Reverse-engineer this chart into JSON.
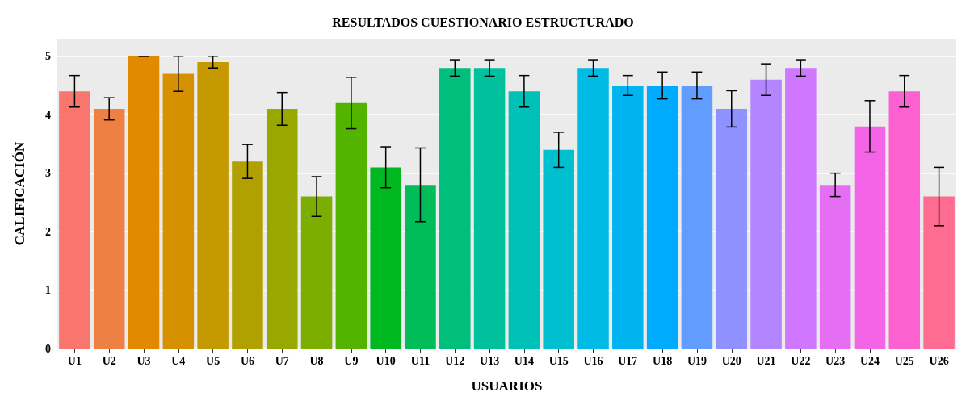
{
  "chart_data": {
    "type": "bar",
    "title": "RESULTADOS CUESTIONARIO ESTRUCTURADO",
    "xlabel": "USUARIOS",
    "ylabel": "CALIFICACIÓN",
    "categories": [
      "U1",
      "U2",
      "U3",
      "U4",
      "U5",
      "U6",
      "U7",
      "U8",
      "U9",
      "U10",
      "U11",
      "U12",
      "U13",
      "U14",
      "U15",
      "U16",
      "U17",
      "U18",
      "U19",
      "U20",
      "U21",
      "U22",
      "U23",
      "U24",
      "U25",
      "U26"
    ],
    "values": [
      4.4,
      4.1,
      5.0,
      4.7,
      4.9,
      3.2,
      4.1,
      2.6,
      4.2,
      3.1,
      2.8,
      4.8,
      4.8,
      4.4,
      3.4,
      4.8,
      4.5,
      4.5,
      4.5,
      4.1,
      4.6,
      4.8,
      2.8,
      3.8,
      4.4,
      2.6
    ],
    "errors": [
      0.27,
      0.19,
      0,
      0.3,
      0.1,
      0.29,
      0.28,
      0.34,
      0.44,
      0.35,
      0.63,
      0.14,
      0.14,
      0.27,
      0.3,
      0.14,
      0.17,
      0.23,
      0.23,
      0.31,
      0.27,
      0.14,
      0.2,
      0.44,
      0.27,
      0.5
    ],
    "colors": [
      "#F8766D",
      "#EE8044",
      "#E38900",
      "#D59100",
      "#C49A00",
      "#B0A100",
      "#99A800",
      "#7CAE00",
      "#53B400",
      "#00B81F",
      "#00BC59",
      "#00BF7D",
      "#00C19C",
      "#00C1B7",
      "#00BFCF",
      "#00BBE3",
      "#00B4F0",
      "#00ABFD",
      "#619CFF",
      "#8F91FF",
      "#B385FF",
      "#CF78FF",
      "#E56EF5",
      "#F365E6",
      "#FD61D1",
      "#FF6C91"
    ],
    "ylim": [
      0,
      5.3
    ],
    "yticks": [
      0,
      1,
      2,
      3,
      4,
      5
    ],
    "grid": "y"
  }
}
